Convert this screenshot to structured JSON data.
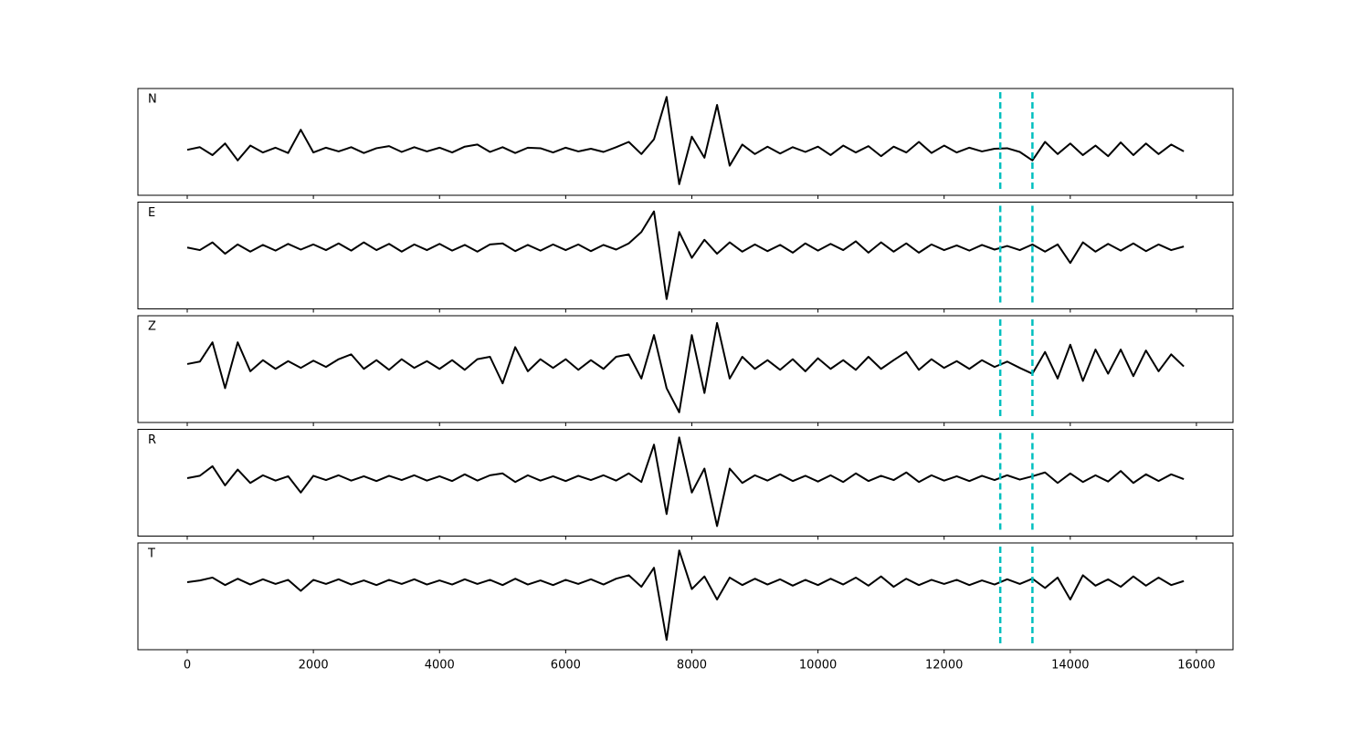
{
  "chart_data": {
    "type": "line",
    "color": "#000000",
    "marker_color": "#00bfbf",
    "markers": [
      12890,
      13400
    ],
    "xlim": [
      -782,
      16580
    ],
    "xticks": [
      0,
      2000,
      4000,
      6000,
      8000,
      10000,
      12000,
      14000,
      16000
    ],
    "x": [
      0,
      200,
      400,
      600,
      800,
      1000,
      1200,
      1400,
      1600,
      1800,
      2000,
      2200,
      2400,
      2600,
      2800,
      3000,
      3200,
      3400,
      3600,
      3800,
      4000,
      4200,
      4400,
      4600,
      4800,
      5000,
      5200,
      5400,
      5600,
      5800,
      6000,
      6200,
      6400,
      6600,
      6800,
      7000,
      7200,
      7400,
      7600,
      7800,
      8000,
      8200,
      8400,
      8600,
      8800,
      9000,
      9200,
      9400,
      9600,
      9800,
      10000,
      10200,
      10400,
      10600,
      10800,
      11000,
      11200,
      11400,
      11600,
      11800,
      12000,
      12200,
      12400,
      12600,
      12800,
      13000,
      13200,
      13400,
      13600,
      13800,
      14000,
      14200,
      14400,
      14600,
      14800,
      15000,
      15200,
      15400,
      15600,
      15800
    ],
    "panels": [
      {
        "label": "N",
        "ylim": [
          -0.86,
          1.16
        ],
        "values": [
          0,
          0.05,
          -0.1,
          0.12,
          -0.2,
          0.08,
          -0.05,
          0.04,
          -0.06,
          0.38,
          -0.05,
          0.04,
          -0.03,
          0.05,
          -0.06,
          0.03,
          0.07,
          -0.04,
          0.05,
          -0.03,
          0.04,
          -0.05,
          0.06,
          0.1,
          -0.04,
          0.05,
          -0.06,
          0.04,
          0.03,
          -0.05,
          0.04,
          -0.03,
          0.02,
          -0.04,
          0.05,
          0.15,
          -0.08,
          0.2,
          1.0,
          -0.65,
          0.25,
          -0.15,
          0.85,
          -0.3,
          0.1,
          -0.08,
          0.06,
          -0.07,
          0.05,
          -0.04,
          0.06,
          -0.1,
          0.08,
          -0.05,
          0.07,
          -0.12,
          0.06,
          -0.05,
          0.15,
          -0.06,
          0.08,
          -0.05,
          0.04,
          -0.03,
          0.02,
          0.03,
          -0.04,
          -0.2,
          0.15,
          -0.08,
          0.12,
          -0.1,
          0.08,
          -0.12,
          0.14,
          -0.1,
          0.12,
          -0.08,
          0.1,
          -0.03
        ]
      },
      {
        "label": "E",
        "ylim": [
          -1.19,
          0.88
        ],
        "values": [
          0,
          -0.05,
          0.1,
          -0.12,
          0.06,
          -0.08,
          0.05,
          -0.06,
          0.07,
          -0.04,
          0.06,
          -0.05,
          0.08,
          -0.06,
          0.1,
          -0.05,
          0.07,
          -0.08,
          0.06,
          -0.05,
          0.07,
          -0.06,
          0.05,
          -0.08,
          0.06,
          0.08,
          -0.07,
          0.05,
          -0.06,
          0.06,
          -0.05,
          0.06,
          -0.07,
          0.05,
          -0.04,
          0.08,
          0.3,
          0.7,
          -1.0,
          0.3,
          -0.2,
          0.15,
          -0.12,
          0.1,
          -0.08,
          0.06,
          -0.07,
          0.05,
          -0.1,
          0.08,
          -0.06,
          0.07,
          -0.05,
          0.12,
          -0.1,
          0.1,
          -0.08,
          0.08,
          -0.1,
          0.06,
          -0.05,
          0.04,
          -0.06,
          0.05,
          -0.04,
          0.03,
          -0.05,
          0.06,
          -0.08,
          0.06,
          -0.3,
          0.1,
          -0.08,
          0.07,
          -0.06,
          0.08,
          -0.07,
          0.06,
          -0.05,
          0.02
        ]
      },
      {
        "label": "Z",
        "ylim": [
          -1.21,
          1.0
        ],
        "values": [
          0,
          0.05,
          0.45,
          -0.5,
          0.45,
          -0.15,
          0.08,
          -0.1,
          0.06,
          -0.08,
          0.07,
          -0.06,
          0.1,
          0.2,
          -0.1,
          0.08,
          -0.12,
          0.1,
          -0.08,
          0.06,
          -0.1,
          0.08,
          -0.12,
          0.1,
          0.15,
          -0.4,
          0.35,
          -0.15,
          0.1,
          -0.08,
          0.1,
          -0.12,
          0.08,
          -0.1,
          0.15,
          0.2,
          -0.3,
          0.6,
          -0.5,
          -1.0,
          0.6,
          -0.6,
          0.85,
          -0.3,
          0.15,
          -0.1,
          0.08,
          -0.12,
          0.1,
          -0.15,
          0.12,
          -0.1,
          0.08,
          -0.12,
          0.15,
          -0.1,
          0.08,
          0.25,
          -0.12,
          0.1,
          -0.08,
          0.06,
          -0.1,
          0.08,
          -0.06,
          0.05,
          -0.08,
          -0.2,
          0.25,
          -0.3,
          0.4,
          -0.35,
          0.3,
          -0.2,
          0.3,
          -0.25,
          0.28,
          -0.15,
          0.2,
          -0.05
        ]
      },
      {
        "label": "R",
        "ylim": [
          -1.21,
          1.02
        ],
        "values": [
          0,
          0.05,
          0.25,
          -0.15,
          0.18,
          -0.1,
          0.06,
          -0.05,
          0.04,
          -0.3,
          0.05,
          -0.04,
          0.06,
          -0.05,
          0.04,
          -0.06,
          0.05,
          -0.04,
          0.06,
          -0.05,
          0.04,
          -0.06,
          0.08,
          -0.05,
          0.06,
          0.1,
          -0.08,
          0.06,
          -0.05,
          0.04,
          -0.06,
          0.05,
          -0.04,
          0.06,
          -0.05,
          0.1,
          -0.08,
          0.7,
          -0.75,
          0.85,
          -0.3,
          0.2,
          -1.0,
          0.2,
          -0.1,
          0.06,
          -0.05,
          0.08,
          -0.06,
          0.05,
          -0.07,
          0.06,
          -0.08,
          0.1,
          -0.06,
          0.05,
          -0.04,
          0.12,
          -0.08,
          0.06,
          -0.05,
          0.04,
          -0.06,
          0.05,
          -0.04,
          0.06,
          -0.03,
          0.04,
          0.12,
          -0.1,
          0.1,
          -0.08,
          0.06,
          -0.07,
          0.15,
          -0.1,
          0.08,
          -0.06,
          0.08,
          -0.02
        ]
      },
      {
        "label": "T",
        "ylim": [
          -1.17,
          0.68
        ],
        "values": [
          0,
          0.03,
          0.08,
          -0.05,
          0.06,
          -0.04,
          0.05,
          -0.03,
          0.04,
          -0.15,
          0.04,
          -0.03,
          0.05,
          -0.04,
          0.03,
          -0.05,
          0.04,
          -0.03,
          0.05,
          -0.04,
          0.03,
          -0.04,
          0.05,
          -0.03,
          0.04,
          -0.05,
          0.06,
          -0.04,
          0.03,
          -0.05,
          0.04,
          -0.03,
          0.05,
          -0.04,
          0.06,
          0.12,
          -0.08,
          0.25,
          -1.0,
          0.55,
          -0.12,
          0.1,
          -0.3,
          0.08,
          -0.05,
          0.06,
          -0.04,
          0.05,
          -0.06,
          0.04,
          -0.05,
          0.06,
          -0.04,
          0.08,
          -0.06,
          0.1,
          -0.08,
          0.06,
          -0.05,
          0.04,
          -0.03,
          0.04,
          -0.05,
          0.03,
          -0.04,
          0.05,
          -0.03,
          0.06,
          -0.1,
          0.08,
          -0.3,
          0.12,
          -0.06,
          0.05,
          -0.08,
          0.1,
          -0.06,
          0.08,
          -0.05,
          0.02
        ]
      }
    ]
  }
}
